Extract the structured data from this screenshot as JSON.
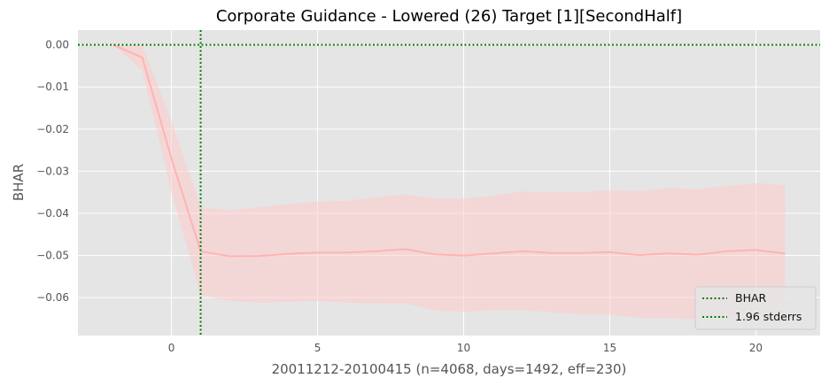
{
  "chart_data": {
    "type": "line",
    "title": "Corporate Guidance - Lowered (26) Target [1][SecondHalf]",
    "xlabel": "20011212-20100415 (n=4068, days=1492, eff=230)",
    "ylabel": "BHAR",
    "xlim": [
      -3.2,
      22.2
    ],
    "ylim": [
      -0.069,
      0.0035
    ],
    "xticks": [
      0,
      5,
      10,
      15,
      20
    ],
    "xtick_labels": [
      "0",
      "5",
      "10",
      "15",
      "20"
    ],
    "yticks": [
      0.0,
      -0.01,
      -0.02,
      -0.03,
      -0.04,
      -0.05,
      -0.06
    ],
    "ytick_labels": [
      "0.00",
      "−0.01",
      "−0.02",
      "−0.03",
      "−0.04",
      "−0.05",
      "−0.06"
    ],
    "grid": true,
    "legend_position": "lower-right",
    "series": [
      {
        "name": "BHAR",
        "color": "#ffb3b3",
        "x": [
          -2,
          -1,
          0,
          1,
          2,
          3,
          4,
          5,
          6,
          7,
          8,
          9,
          10,
          11,
          12,
          13,
          14,
          15,
          16,
          17,
          18,
          19,
          20,
          21
        ],
        "values": [
          0.0,
          -0.003,
          -0.027,
          -0.049,
          -0.0502,
          -0.0501,
          -0.0496,
          -0.0493,
          -0.0493,
          -0.049,
          -0.0485,
          -0.0497,
          -0.05,
          -0.0495,
          -0.049,
          -0.0494,
          -0.0494,
          -0.0492,
          -0.0499,
          -0.0495,
          -0.0498,
          -0.049,
          -0.0487,
          -0.0495
        ],
        "upper": [
          0.0,
          0.0,
          -0.018,
          -0.0385,
          -0.0393,
          -0.0385,
          -0.0378,
          -0.0372,
          -0.037,
          -0.0362,
          -0.0355,
          -0.0365,
          -0.0365,
          -0.0358,
          -0.0348,
          -0.035,
          -0.035,
          -0.0345,
          -0.0348,
          -0.034,
          -0.0342,
          -0.0335,
          -0.0328,
          -0.0333
        ],
        "lower": [
          0.0,
          -0.006,
          -0.035,
          -0.0595,
          -0.0608,
          -0.0612,
          -0.061,
          -0.0608,
          -0.0612,
          -0.0614,
          -0.0614,
          -0.063,
          -0.0634,
          -0.063,
          -0.063,
          -0.0635,
          -0.064,
          -0.064,
          -0.0648,
          -0.0648,
          -0.0652,
          -0.0648,
          -0.0645,
          -0.0655
        ]
      }
    ],
    "reference_lines": [
      {
        "orientation": "horizontal",
        "value": 0.0,
        "color": "#008000",
        "style": "dotted"
      },
      {
        "orientation": "vertical",
        "value": 1,
        "color": "#008000",
        "style": "dotted"
      }
    ],
    "legend": [
      {
        "label": "BHAR",
        "color": "#008000",
        "style": "dotted"
      },
      {
        "label": "1.96 stderrs",
        "color": "#008000",
        "style": "dotted"
      }
    ],
    "colors": {
      "plot_background": "#e5e5e5",
      "grid": "#ffffff",
      "line": "#ffb3b3",
      "band": "#ffcccc",
      "reference": "#008000"
    }
  }
}
